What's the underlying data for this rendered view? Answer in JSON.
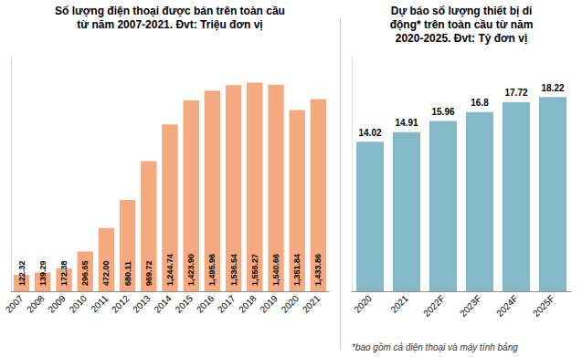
{
  "chart_data": [
    {
      "type": "bar",
      "title": "Số lượng điện thoại được bán trên toàn cầu\ntừ năm 2007-2021. Đvt: Triệu đơn vị",
      "categories": [
        "2007",
        "2008",
        "2009",
        "2010",
        "2011",
        "2012",
        "2013",
        "2014",
        "2015",
        "2016",
        "2017",
        "2018",
        "2019",
        "2020",
        "2021"
      ],
      "values": [
        122.32,
        139.29,
        172.38,
        296.65,
        472.0,
        680.11,
        969.72,
        1244.74,
        1423.9,
        1495.96,
        1536.54,
        1556.27,
        1540.66,
        1351.84,
        1433.86
      ],
      "value_labels": [
        "122.32",
        "139.29",
        "172.38",
        "296.65",
        "472.00",
        "680.11",
        "969.72",
        "1,244.74",
        "1,423.90",
        "1,495.96",
        "1,536.54",
        "1,556.27",
        "1,540.66",
        "1,351.84",
        "1,433.86"
      ],
      "color": "#F4A97F",
      "ylim": [
        0,
        1750
      ],
      "grid": false,
      "data_labels": true,
      "tick_labels": "x"
    },
    {
      "type": "bar",
      "title": "Dự báo số lượng thiết bị di\nđộng* trên toàn cầu từ năm\n2020-2025. Đvt: Tỷ đơn vị",
      "categories": [
        "2020",
        "2021",
        "2022F",
        "2023F",
        "2024F",
        "2025F"
      ],
      "values": [
        14.02,
        14.91,
        15.96,
        16.8,
        17.72,
        18.22
      ],
      "color": "#85B8C8",
      "ylim": [
        0,
        22
      ],
      "grid": false,
      "data_labels": true,
      "tick_labels": "x",
      "annotations": [
        "*bao gồm cả điện thoại và máy tính bảng"
      ]
    }
  ]
}
